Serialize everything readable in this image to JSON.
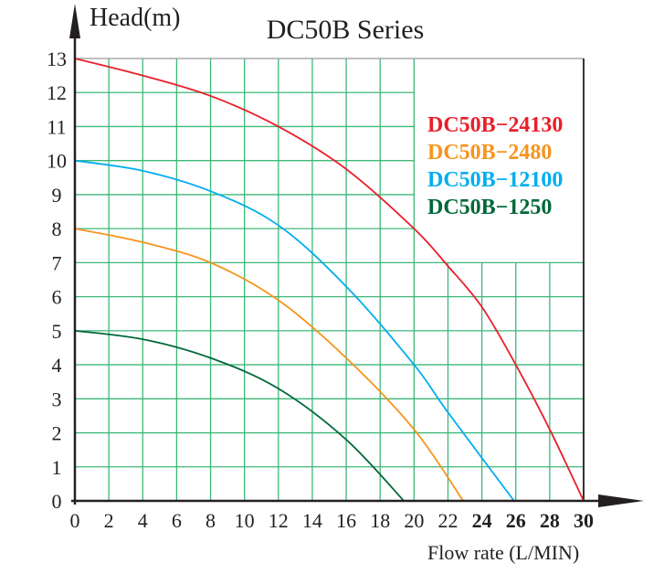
{
  "chart_data": {
    "type": "line",
    "title": "DC50B Series",
    "xlabel": "Flow rate (L/MIN)",
    "ylabel": "Head(m)",
    "xlim": [
      0,
      30
    ],
    "ylim": [
      0,
      13
    ],
    "grid": true,
    "legend_position": "top-right",
    "x_ticks": [
      "0",
      "2",
      "4",
      "6",
      "8",
      "10",
      "12",
      "14",
      "16",
      "18",
      "20",
      "22",
      "24",
      "26",
      "28",
      "30"
    ],
    "y_ticks": [
      "0",
      "1",
      "2",
      "3",
      "4",
      "5",
      "6",
      "7",
      "8",
      "9",
      "10",
      "11",
      "12",
      "13"
    ],
    "series": [
      {
        "name": "DC50B-24130",
        "color": "#e8202a",
        "x": [
          0,
          4,
          8,
          12,
          16,
          20,
          22,
          24,
          26,
          28,
          30
        ],
        "y": [
          13,
          12.5,
          11.9,
          11.0,
          9.75,
          8.0,
          6.9,
          5.7,
          4.0,
          2.1,
          0
        ]
      },
      {
        "name": "DC50B-2480",
        "color": "#f7941d",
        "x": [
          0,
          4,
          8,
          12,
          16,
          20,
          22.9
        ],
        "y": [
          8,
          7.6,
          7.0,
          5.9,
          4.2,
          2.1,
          0
        ]
      },
      {
        "name": "DC50B-12100",
        "color": "#00aeef",
        "x": [
          0,
          4,
          8,
          12,
          16,
          20,
          22,
          25.9
        ],
        "y": [
          10,
          9.7,
          9.1,
          8.1,
          6.3,
          4.0,
          2.6,
          0
        ]
      },
      {
        "name": "DC50B-1250",
        "color": "#006838",
        "x": [
          0,
          4,
          8,
          12,
          16,
          19.4
        ],
        "y": [
          5,
          4.75,
          4.2,
          3.3,
          1.8,
          0
        ]
      }
    ],
    "grid_color": "#3cb878"
  }
}
